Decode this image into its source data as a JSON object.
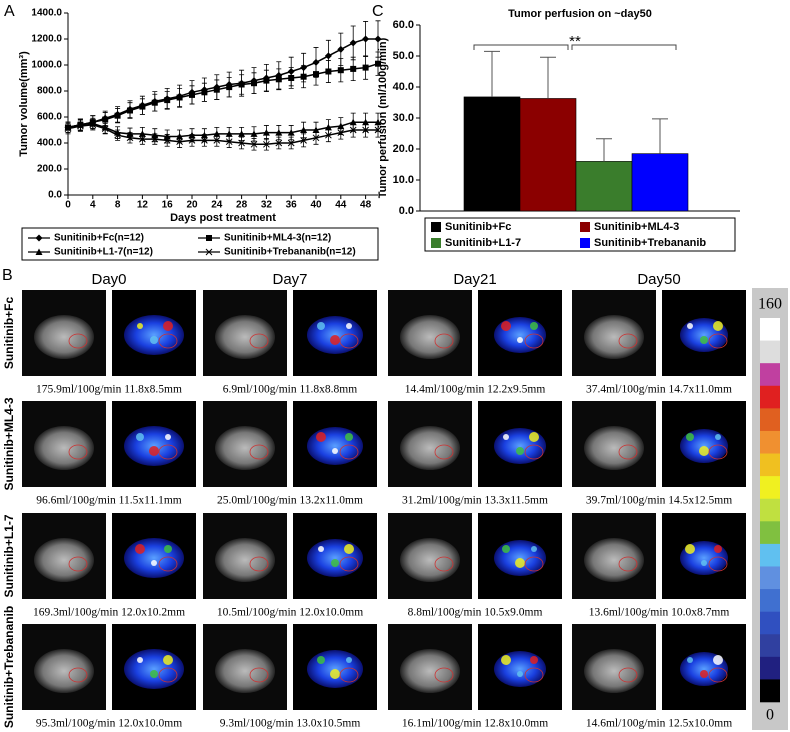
{
  "chart_data": [
    {
      "type": "line",
      "panel_label": "A",
      "ylabel": "Tumor volume(mm³)",
      "xlabel": "Days post treatment",
      "x": [
        0,
        2,
        4,
        6,
        8,
        10,
        12,
        14,
        16,
        18,
        20,
        22,
        24,
        26,
        28,
        30,
        32,
        34,
        36,
        38,
        40,
        42,
        44,
        46,
        48,
        50
      ],
      "xlim": [
        0,
        50
      ],
      "xticks": [
        0,
        4,
        8,
        12,
        16,
        20,
        24,
        28,
        32,
        36,
        40,
        44,
        48
      ],
      "ylim": [
        0,
        1400
      ],
      "yticks": [
        {
          "value": 0,
          "label": "0.0"
        },
        {
          "value": 200,
          "label": "200.0"
        },
        {
          "value": 400,
          "label": "400.0"
        },
        {
          "value": 600,
          "label": "600.0"
        },
        {
          "value": 800,
          "label": "800.0"
        },
        {
          "value": 1000,
          "label": "1000.0"
        },
        {
          "value": 1200,
          "label": "1200.0"
        },
        {
          "value": 1400,
          "label": "1400.0"
        }
      ],
      "series": [
        {
          "name": "Sunitinib+Fc(n=12)",
          "color": "#000000",
          "marker": "diamond",
          "values": [
            520,
            540,
            560,
            590,
            620,
            660,
            690,
            720,
            740,
            760,
            790,
            810,
            830,
            850,
            860,
            880,
            900,
            920,
            950,
            980,
            1020,
            1070,
            1120,
            1170,
            1200,
            1200
          ],
          "errors": [
            40,
            45,
            50,
            55,
            60,
            65,
            70,
            75,
            80,
            85,
            90,
            90,
            95,
            95,
            100,
            100,
            105,
            105,
            110,
            110,
            115,
            120,
            125,
            130,
            135,
            140
          ]
        },
        {
          "name": "Sunitinib+ML4-3(n=12)",
          "color": "#000000",
          "marker": "square",
          "values": [
            520,
            540,
            560,
            580,
            610,
            650,
            680,
            710,
            730,
            750,
            770,
            790,
            810,
            830,
            850,
            860,
            880,
            890,
            900,
            910,
            930,
            950,
            960,
            970,
            980,
            1010
          ],
          "errors": [
            40,
            45,
            50,
            55,
            55,
            60,
            60,
            65,
            65,
            70,
            70,
            70,
            75,
            75,
            75,
            80,
            80,
            80,
            80,
            85,
            85,
            85,
            90,
            90,
            90,
            90
          ]
        },
        {
          "name": "Sunitinib+L1-7(n=12)",
          "color": "#000000",
          "marker": "triangle",
          "values": [
            520,
            540,
            550,
            520,
            480,
            470,
            470,
            460,
            450,
            450,
            460,
            460,
            470,
            470,
            470,
            470,
            480,
            480,
            480,
            500,
            500,
            520,
            530,
            560,
            560,
            560
          ],
          "errors": [
            40,
            40,
            40,
            45,
            45,
            45,
            50,
            50,
            50,
            50,
            50,
            50,
            50,
            50,
            50,
            55,
            55,
            55,
            55,
            60,
            60,
            60,
            65,
            70,
            70,
            70
          ]
        },
        {
          "name": "Sunitinib+Trebananib(n=12)",
          "color": "#000000",
          "marker": "x",
          "values": [
            510,
            530,
            540,
            510,
            460,
            440,
            430,
            430,
            420,
            410,
            420,
            420,
            420,
            410,
            400,
            390,
            390,
            400,
            400,
            420,
            440,
            460,
            480,
            500,
            500,
            500
          ],
          "errors": [
            40,
            40,
            40,
            40,
            40,
            40,
            40,
            40,
            45,
            45,
            45,
            45,
            45,
            45,
            45,
            45,
            45,
            45,
            45,
            50,
            50,
            50,
            50,
            55,
            55,
            55
          ]
        }
      ]
    },
    {
      "type": "bar",
      "panel_label": "C",
      "title": "Tumor perfusion on ~day50",
      "ylabel": "Tumor perfusion (ml/100g/min)",
      "categories": [
        "Sunitinib+Fc",
        "Sunitinib+ML4-3",
        "Sunitinib+L1-7",
        "Sunitinib+Trebananib"
      ],
      "values": [
        36.8,
        36.3,
        16.0,
        18.5
      ],
      "errors": [
        14.7,
        13.3,
        7.3,
        11.2
      ],
      "colors": [
        "#000000",
        "#8b0000",
        "#3a7d2c",
        "#0000ff"
      ],
      "ylim": [
        0,
        60
      ],
      "yticks": [
        {
          "value": 0,
          "label": "0.0"
        },
        {
          "value": 10,
          "label": "10.0"
        },
        {
          "value": 20,
          "label": "20.0"
        },
        {
          "value": 30,
          "label": "30.0"
        },
        {
          "value": 40,
          "label": "40.0"
        },
        {
          "value": 50,
          "label": "50.0"
        },
        {
          "value": 60,
          "label": "60.0"
        }
      ],
      "annotation": "**"
    }
  ],
  "mri": {
    "panel_label": "B",
    "days": [
      "Day0",
      "Day7",
      "Day21",
      "Day50"
    ],
    "groups": [
      "Sunitinib+Fc",
      "Sunitinib+ML4-3",
      "Sunitinib+L1-7",
      "Sunitinib+Trebananib"
    ],
    "captions": [
      [
        "175.9ml/100g/min 11.8x8.5mm",
        "6.9ml/100g/min 11.8x8.8mm",
        "14.4ml/100g/min 12.2x9.5mm",
        "37.4ml/100g/min 14.7x11.0mm"
      ],
      [
        "96.6ml/100g/min 11.5x11.1mm",
        "25.0ml/100g/min 13.2x11.0mm",
        "31.2ml/100g/min 13.3x11.5mm",
        "39.7ml/100g/min 14.5x12.5mm"
      ],
      [
        "169.3ml/100g/min 12.0x10.2mm",
        "10.5ml/100g/min 12.0x10.0mm",
        "8.8ml/100g/min 10.5x9.0mm",
        "13.6ml/100g/min 10.0x8.7mm"
      ],
      [
        "95.3ml/100g/min 12.0x10.0mm",
        "9.3ml/100g/min 13.0x10.5mm",
        "16.1ml/100g/min 12.8x10.0mm",
        "14.6ml/100g/min 12.5x10.0mm"
      ]
    ],
    "colorbar": {
      "max": "160",
      "min": "0",
      "colors": [
        "#ffffff",
        "#dddddd",
        "#c040a0",
        "#e02020",
        "#e06020",
        "#f09030",
        "#f0c020",
        "#f0f020",
        "#c0e040",
        "#80c040",
        "#60c0f0",
        "#6090e0",
        "#4070d0",
        "#3050c0",
        "#3040a0",
        "#202080",
        "#000000"
      ]
    }
  }
}
